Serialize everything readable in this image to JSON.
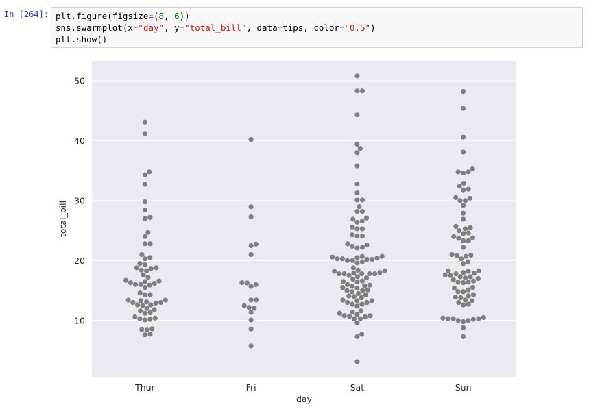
{
  "cell": {
    "prompt": "In [264]:",
    "code_lines": [
      "plt.figure(figsize=(8, 6))",
      "sns.swarmplot(x=\"day\", y=\"total_bill\", data=tips, color=\"0.5\")",
      "plt.show()"
    ]
  },
  "chart_data": {
    "type": "scatter",
    "subtype": "swarm",
    "xlabel": "day",
    "ylabel": "total_bill",
    "categories": [
      "Thur",
      "Fri",
      "Sat",
      "Sun"
    ],
    "ylim": [
      0.6,
      53.3
    ],
    "yticks": [
      10,
      20,
      30,
      40,
      50
    ],
    "grid": true,
    "background": "#eaeaf2",
    "point_color": "#7f7f7f",
    "series": [
      {
        "category": "Thur",
        "values": [
          43.1,
          41.2,
          34.8,
          34.3,
          32.7,
          29.8,
          28.4,
          27.2,
          27.0,
          24.7,
          24.0,
          22.8,
          22.8,
          21.0,
          20.5,
          20.3,
          19.5,
          19.3,
          18.8,
          18.8,
          18.7,
          18.4,
          18.3,
          17.6,
          17.2,
          16.7,
          16.6,
          16.5,
          16.3,
          16.2,
          16.0,
          16.0,
          15.9,
          15.5,
          14.6,
          14.3,
          14.3,
          13.4,
          13.4,
          13.3,
          13.1,
          13.0,
          13.0,
          12.9,
          12.6,
          12.6,
          12.5,
          12.0,
          11.8,
          11.6,
          11.3,
          11.2,
          10.6,
          10.4,
          10.3,
          10.2,
          10.1,
          8.6,
          8.5,
          8.4,
          7.7,
          7.6
        ]
      },
      {
        "category": "Fri",
        "values": [
          40.2,
          28.97,
          27.28,
          22.75,
          22.49,
          21.01,
          16.32,
          16.27,
          15.98,
          15.69,
          13.42,
          13.42,
          12.46,
          12.16,
          12.03,
          11.35,
          10.09,
          8.58,
          5.75
        ]
      },
      {
        "category": "Sat",
        "values": [
          50.8,
          48.3,
          48.3,
          44.3,
          39.4,
          38.7,
          38.0,
          35.8,
          32.8,
          31.3,
          30.1,
          30.1,
          29.0,
          28.2,
          28.2,
          27.1,
          26.9,
          26.6,
          26.4,
          25.6,
          25.3,
          25.3,
          24.3,
          24.1,
          24.1,
          22.8,
          22.6,
          22.4,
          22.2,
          22.1,
          20.7,
          20.7,
          20.6,
          20.5,
          20.4,
          20.3,
          20.3,
          20.2,
          20.2,
          20.0,
          20.0,
          19.8,
          19.6,
          18.8,
          18.4,
          18.3,
          18.2,
          18.0,
          17.9,
          17.8,
          17.8,
          17.8,
          17.8,
          17.8,
          17.5,
          17.3,
          17.1,
          16.9,
          16.6,
          16.5,
          16.4,
          16.0,
          15.9,
          15.8,
          15.7,
          15.5,
          15.4,
          15.1,
          15.0,
          15.0,
          14.8,
          14.5,
          14.3,
          14.1,
          14.0,
          13.8,
          13.4,
          13.3,
          13.3,
          13.0,
          13.0,
          12.7,
          12.7,
          12.4,
          11.6,
          11.4,
          11.2,
          11.0,
          10.8,
          10.8,
          10.7,
          10.6,
          10.3,
          10.3,
          9.6,
          7.7,
          7.3,
          3.1
        ]
      },
      {
        "category": "Sun",
        "values": [
          48.2,
          45.4,
          40.6,
          38.1,
          35.3,
          34.8,
          34.8,
          34.6,
          32.9,
          32.4,
          31.9,
          31.8,
          30.5,
          30.4,
          30.0,
          30.0,
          29.2,
          27.9,
          26.9,
          25.7,
          25.5,
          25.3,
          25.0,
          24.6,
          24.5,
          24.0,
          23.8,
          23.7,
          23.3,
          23.3,
          22.2,
          21.0,
          20.9,
          20.8,
          20.7,
          20.3,
          19.8,
          19.5,
          18.3,
          18.3,
          18.2,
          18.0,
          17.9,
          17.8,
          17.6,
          17.5,
          17.3,
          17.3,
          17.1,
          17.0,
          16.8,
          16.6,
          16.4,
          16.4,
          16.3,
          15.5,
          15.4,
          15.1,
          14.8,
          14.8,
          14.3,
          14.1,
          13.9,
          13.8,
          13.4,
          13.3,
          13.0,
          12.7,
          12.6,
          10.5,
          10.4,
          10.3,
          10.3,
          10.3,
          10.2,
          10.0,
          10.0,
          9.8,
          8.8,
          7.3
        ]
      }
    ]
  }
}
